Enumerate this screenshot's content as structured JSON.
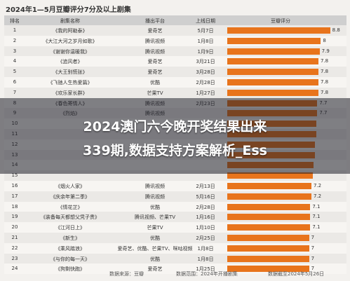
{
  "page_title": "2024年1—5月豆瓣评分7分及以上剧集",
  "headers": {
    "rank": "排名",
    "name": "剧集名称",
    "platform": "播出平台",
    "date": "上线日期",
    "score": "豆瓣评分"
  },
  "overlay": {
    "line1": "2024澳门六今晚开奖结果出来",
    "line2": "339期,数据支持方案解析_Ess"
  },
  "footer": {
    "source": "数据来源：豆瓣",
    "scope": "数据范围：2024年开播剧集",
    "cutoff": "数据截至2024年5月26日"
  },
  "chart_data": {
    "type": "bar",
    "title": "2024年1—5月豆瓣评分7分及以上剧集",
    "xlim": [
      0,
      9
    ],
    "rows": [
      {
        "rank": "1",
        "name": "《我的阿勒泰》",
        "platform": "爱奇艺",
        "date": "5月7日",
        "score": 8.8,
        "label": "8.8"
      },
      {
        "rank": "2",
        "name": "《大江大河之岁月如歌》",
        "platform": "腾讯视频",
        "date": "1月8日",
        "score": 8.0,
        "label": "8"
      },
      {
        "rank": "3",
        "name": "《谢谢你温暖我》",
        "platform": "腾讯视频",
        "date": "1月9日",
        "score": 7.9,
        "label": "7.9"
      },
      {
        "rank": "4",
        "name": "《追风者》",
        "platform": "爱奇艺",
        "date": "3月21日",
        "score": 7.8,
        "label": "7.8"
      },
      {
        "rank": "5",
        "name": "《大王别慌张》",
        "platform": "爱奇艺",
        "date": "3月28日",
        "score": 7.8,
        "label": "7.8"
      },
      {
        "rank": "6",
        "name": "《飞驰人生热爱篇》",
        "platform": "优酷",
        "date": "2月28日",
        "score": 7.8,
        "label": "7.8"
      },
      {
        "rank": "7",
        "name": "《欢乐家长群》",
        "platform": "芒果TV",
        "date": "1月27日",
        "score": 7.8,
        "label": "7.8"
      },
      {
        "rank": "8",
        "name": "《春色寄情人》",
        "platform": "腾讯视频",
        "date": "2月23日",
        "score": 7.7,
        "label": "7.7"
      },
      {
        "rank": "9",
        "name": "《烈焰》",
        "platform": "腾讯视频",
        "date": "",
        "score": 7.7,
        "label": "7.7"
      },
      {
        "rank": "10",
        "name": "",
        "platform": "",
        "date": "",
        "score": 7.6,
        "label": ""
      },
      {
        "rank": "11",
        "name": "",
        "platform": "",
        "date": "",
        "score": 7.6,
        "label": ""
      },
      {
        "rank": "12",
        "name": "",
        "platform": "",
        "date": "",
        "score": 7.5,
        "label": ""
      },
      {
        "rank": "13",
        "name": "",
        "platform": "",
        "date": "",
        "score": 7.5,
        "label": ""
      },
      {
        "rank": "14",
        "name": "",
        "platform": "",
        "date": "",
        "score": 7.4,
        "label": ""
      },
      {
        "rank": "15",
        "name": "",
        "platform": "",
        "date": "",
        "score": 7.3,
        "label": ""
      },
      {
        "rank": "16",
        "name": "《烟火人家》",
        "platform": "腾讯视频",
        "date": "2月13日",
        "score": 7.2,
        "label": "7.2"
      },
      {
        "rank": "17",
        "name": "《庆余年第二季》",
        "platform": "腾讯视频",
        "date": "5月16日",
        "score": 7.2,
        "label": "7.2"
      },
      {
        "rank": "18",
        "name": "《情花芷》",
        "platform": "优酷",
        "date": "2月28日",
        "score": 7.1,
        "label": "7.1"
      },
      {
        "rank": "19",
        "name": "《装备每天都想父凭子贵》",
        "platform": "腾讯视频、芒果TV",
        "date": "1月16日",
        "score": 7.1,
        "label": "7.1"
      },
      {
        "rank": "20",
        "name": "《江河日上》",
        "platform": "芒果TV",
        "date": "1月10日",
        "score": 7.1,
        "label": "7.1"
      },
      {
        "rank": "21",
        "name": "《新生》",
        "platform": "优酷",
        "date": "2月25日",
        "score": 7.0,
        "label": "7"
      },
      {
        "rank": "22",
        "name": "《乘风踏浪》",
        "platform": "爱奇艺、优酷、芒果TV、咪咕视频",
        "date": "1月8日",
        "score": 7.0,
        "label": "7"
      },
      {
        "rank": "23",
        "name": "《与你的每一天》",
        "platform": "优酷",
        "date": "1月8日",
        "score": 7.0,
        "label": "7"
      },
      {
        "rank": "24",
        "name": "《狗剩快跑》",
        "platform": "爱奇艺",
        "date": "1月25日",
        "score": 7.0,
        "label": "7"
      }
    ]
  }
}
